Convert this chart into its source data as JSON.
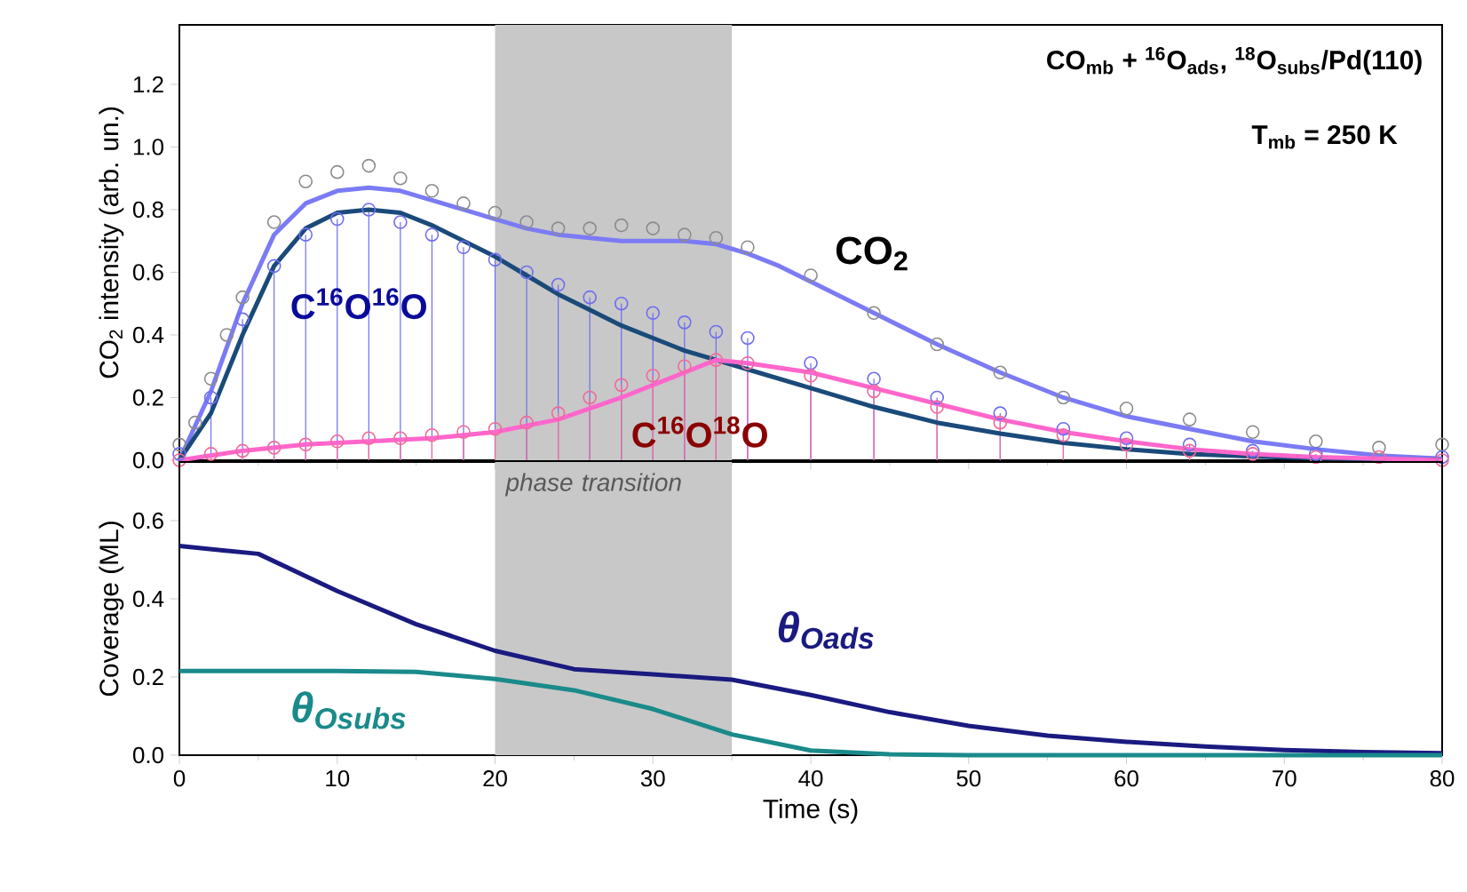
{
  "chart_data": [
    {
      "type": "line",
      "ylabel": "CO$_{2}$ intensity (arb. un.)",
      "xlim": [
        0,
        80
      ],
      "ylim": [
        0,
        1.39
      ],
      "tick_labels": "y",
      "xticks": [
        {
          "value": 0,
          "label": null
        },
        {
          "value": 10,
          "label": null
        },
        {
          "value": 20,
          "label": null
        },
        {
          "value": 30,
          "label": null
        },
        {
          "value": 40,
          "label": null
        },
        {
          "value": 50,
          "label": null
        },
        {
          "value": 60,
          "label": null
        },
        {
          "value": 70,
          "label": null
        },
        {
          "value": 80,
          "label": null
        }
      ],
      "yticks": [
        {
          "value": 0,
          "label": "0.0"
        },
        {
          "value": 0.2,
          "label": "0.2"
        },
        {
          "value": 0.4,
          "label": "0.4"
        },
        {
          "value": 0.6,
          "label": "0.6"
        },
        {
          "value": 0.8,
          "label": "0.8"
        },
        {
          "value": 1.0,
          "label": "1.0"
        },
        {
          "value": 1.2,
          "label": "1.2"
        }
      ],
      "bands": [
        {
          "axis": "x",
          "from": 20,
          "to": 35,
          "color": "#c8c8c8"
        }
      ],
      "annotations": [
        "CO$_{mb}$ + $^{16}$O$_{ads}$, $^{18}$O$_{subs}$/Pd(110)",
        "T$_{mb}$ = 250 K"
      ],
      "series": [
        {
          "name": "CO$_{2}$",
          "type": "scatter",
          "marker": "circle",
          "color": "#8c8c8c",
          "x": [
            0,
            1,
            2,
            3,
            4,
            6,
            8,
            10,
            12,
            14,
            16,
            18,
            20,
            22,
            24,
            26,
            28,
            30,
            32,
            34,
            36,
            40,
            44,
            48,
            52,
            56,
            60,
            64,
            68,
            72,
            76,
            80
          ],
          "values": [
            0.05,
            0.12,
            0.26,
            0.4,
            0.52,
            0.76,
            0.89,
            0.92,
            0.94,
            0.9,
            0.86,
            0.82,
            0.79,
            0.76,
            0.74,
            0.74,
            0.75,
            0.74,
            0.72,
            0.71,
            0.68,
            0.59,
            0.47,
            0.37,
            0.28,
            0.2,
            0.165,
            0.13,
            0.09,
            0.06,
            0.04,
            0.05
          ]
        },
        {
          "name": "C$^{16}$O$^{16}$O",
          "type": "lollipop",
          "marker": "circle",
          "color": "#6e6ef0",
          "x": [
            0,
            2,
            4,
            6,
            8,
            10,
            12,
            14,
            16,
            18,
            20,
            22,
            24,
            26,
            28,
            30,
            32,
            34,
            36,
            40,
            44,
            48,
            52,
            56,
            60,
            64,
            68,
            72,
            76,
            80
          ],
          "values": [
            0.02,
            0.2,
            0.45,
            0.62,
            0.72,
            0.77,
            0.8,
            0.76,
            0.72,
            0.68,
            0.64,
            0.6,
            0.56,
            0.52,
            0.5,
            0.47,
            0.44,
            0.41,
            0.39,
            0.31,
            0.26,
            0.2,
            0.15,
            0.1,
            0.07,
            0.05,
            0.03,
            0.02,
            null,
            0.01
          ]
        },
        {
          "name": "C$^{16}$O$^{18}$O",
          "type": "lollipop",
          "marker": "circle",
          "color": "#f06a9a",
          "x": [
            0,
            2,
            4,
            6,
            8,
            10,
            12,
            14,
            16,
            18,
            20,
            22,
            24,
            26,
            28,
            30,
            32,
            34,
            36,
            40,
            44,
            48,
            52,
            56,
            60,
            64,
            68,
            72,
            76,
            80
          ],
          "values": [
            0,
            0.02,
            0.03,
            0.04,
            0.05,
            0.06,
            0.07,
            0.07,
            0.08,
            0.09,
            0.1,
            0.12,
            0.15,
            0.2,
            0.24,
            0.27,
            0.3,
            0.32,
            0.31,
            0.27,
            0.22,
            0.17,
            0.12,
            0.08,
            0.05,
            0.03,
            0.02,
            0.01,
            0.01,
            0
          ]
        },
        {
          "type": "line",
          "color": "#7b7bf5",
          "x": [
            0,
            2,
            4,
            6,
            8,
            10,
            12,
            14,
            16,
            18,
            20,
            22,
            24,
            26,
            28,
            30,
            32,
            34,
            36,
            38,
            40,
            44,
            48,
            52,
            56,
            60,
            64,
            68,
            72,
            76,
            80
          ],
          "values": [
            0,
            0.22,
            0.5,
            0.72,
            0.82,
            0.86,
            0.87,
            0.86,
            0.83,
            0.8,
            0.77,
            0.74,
            0.72,
            0.71,
            0.7,
            0.7,
            0.7,
            0.69,
            0.66,
            0.62,
            0.57,
            0.47,
            0.37,
            0.28,
            0.2,
            0.14,
            0.1,
            0.06,
            0.035,
            0.015,
            0.005
          ]
        },
        {
          "type": "line",
          "color": "#1a4a7a",
          "x": [
            0,
            2,
            4,
            6,
            8,
            10,
            12,
            14,
            16,
            18,
            20,
            22,
            24,
            26,
            28,
            30,
            32,
            34,
            36,
            40,
            44,
            48,
            52,
            56,
            60,
            64,
            68,
            72,
            76,
            80
          ],
          "values": [
            0,
            0.15,
            0.4,
            0.62,
            0.74,
            0.79,
            0.8,
            0.79,
            0.75,
            0.7,
            0.65,
            0.59,
            0.53,
            0.48,
            0.43,
            0.39,
            0.35,
            0.32,
            0.29,
            0.23,
            0.17,
            0.12,
            0.085,
            0.055,
            0.035,
            0.02,
            0.012,
            0.006,
            0.003,
            0.001
          ]
        },
        {
          "type": "line",
          "color": "#ff66cc",
          "x": [
            0,
            4,
            8,
            12,
            16,
            20,
            24,
            28,
            32,
            34,
            36,
            40,
            44,
            48,
            52,
            56,
            60,
            64,
            68,
            72,
            76,
            80
          ],
          "values": [
            0,
            0.03,
            0.05,
            0.06,
            0.07,
            0.09,
            0.13,
            0.2,
            0.28,
            0.32,
            0.31,
            0.28,
            0.23,
            0.18,
            0.13,
            0.09,
            0.06,
            0.035,
            0.02,
            0.01,
            0.005,
            0
          ]
        }
      ]
    },
    {
      "type": "line",
      "xlabel": "Time (s)",
      "ylabel": "Coverage (ML)",
      "xlim": [
        0,
        80
      ],
      "ylim": [
        0,
        0.75
      ],
      "xticks": [
        0,
        10,
        20,
        30,
        40,
        50,
        60,
        70,
        80
      ],
      "yticks": [
        {
          "value": 0,
          "label": "0.0"
        },
        {
          "value": 0.2,
          "label": "0.2"
        },
        {
          "value": 0.4,
          "label": "0.4"
        },
        {
          "value": 0.6,
          "label": "0.6"
        }
      ],
      "bands": [
        {
          "axis": "x",
          "from": 20,
          "to": 35,
          "color": "#c8c8c8",
          "label": "phase transition"
        }
      ],
      "series": [
        {
          "name": "θ$_{Oads}$",
          "color": "#1a1a80",
          "x": [
            0,
            5,
            10,
            15,
            20,
            25,
            30,
            35,
            40,
            45,
            50,
            55,
            60,
            65,
            70,
            75,
            80
          ],
          "values": [
            0.535,
            0.515,
            0.42,
            0.335,
            0.267,
            0.22,
            0.207,
            0.193,
            0.154,
            0.11,
            0.075,
            0.05,
            0.034,
            0.022,
            0.013,
            0.008,
            0.005
          ]
        },
        {
          "name": "θ$_{Osubs}$",
          "color": "#1a8a8a",
          "x": [
            0,
            10,
            15,
            20,
            25,
            30,
            35,
            40,
            45,
            50,
            80
          ],
          "values": [
            0.215,
            0.215,
            0.213,
            0.195,
            0.166,
            0.118,
            0.053,
            0.012,
            0.002,
            0,
            0
          ]
        }
      ]
    }
  ]
}
